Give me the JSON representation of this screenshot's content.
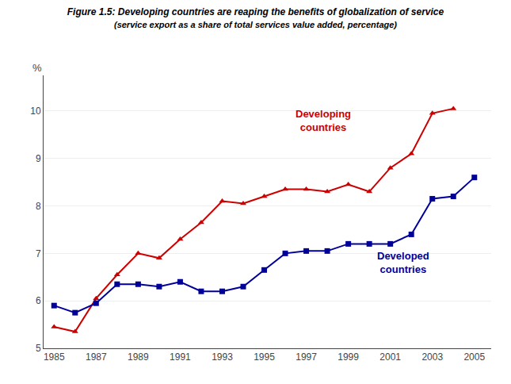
{
  "chart_data": {
    "type": "line",
    "title": "Figure 1.5: Developing countries are reaping the benefits of globalization of service",
    "subtitle": "(service export as a share of total services value added, percentage)",
    "ylabel": "%",
    "series": [
      {
        "type": "line",
        "color": "#CC0000",
        "marker": "triangle-up",
        "x": [
          1985,
          1986,
          1987,
          1988,
          1989,
          1990,
          1991,
          1992,
          1993,
          1994,
          1995,
          1996,
          1997,
          1998,
          1999,
          2000,
          2001,
          2002,
          2003,
          2004
        ],
        "values": [
          5.45,
          5.35,
          6.05,
          6.55,
          7.0,
          6.9,
          7.3,
          7.65,
          8.1,
          8.05,
          8.2,
          8.35,
          8.35,
          8.3,
          8.45,
          8.3,
          8.8,
          9.1,
          9.95,
          10.05
        ]
      },
      {
        "type": "line",
        "color": "#000099",
        "marker": "square",
        "x": [
          1985,
          1986,
          1987,
          1988,
          1989,
          1990,
          1991,
          1992,
          1993,
          1994,
          1995,
          1996,
          1997,
          1998,
          1999,
          2000,
          2001,
          2002,
          2003,
          2004,
          2005
        ],
        "values": [
          5.9,
          5.75,
          5.95,
          6.35,
          6.35,
          6.3,
          6.4,
          6.2,
          6.2,
          6.3,
          6.65,
          7.0,
          7.05,
          7.05,
          7.2,
          7.2,
          7.2,
          7.4,
          8.15,
          8.2,
          8.6
        ]
      }
    ],
    "annotations": [
      {
        "text": "Developing\ncountries",
        "x": 1997.8,
        "y": 9.5,
        "color": "#CC0000",
        "position": "above"
      },
      {
        "text": "Developed\ncountries",
        "x": 2001.6,
        "y": 7.1,
        "color": "#000099",
        "position": "below"
      }
    ],
    "xlim": [
      1984.5,
      2005.8
    ],
    "ylim": [
      5.0,
      10.75
    ],
    "xticks": [
      1985,
      1987,
      1989,
      1991,
      1993,
      1995,
      1997,
      1999,
      2001,
      2003,
      2005
    ],
    "yticks": [
      5,
      6,
      7,
      8,
      9,
      10
    ],
    "grid": "y"
  }
}
